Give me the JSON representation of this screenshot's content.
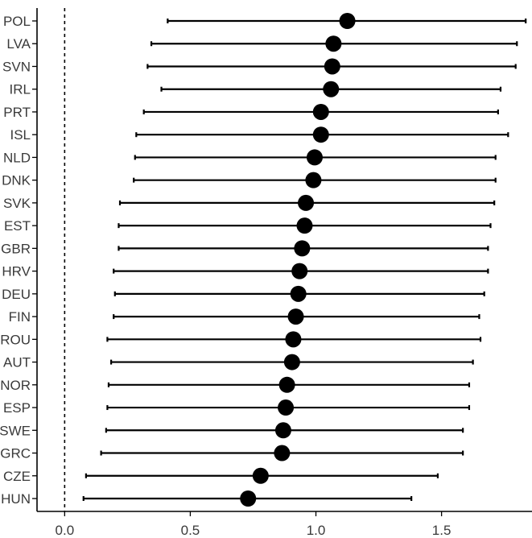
{
  "chart_data": {
    "type": "forest",
    "title": "",
    "xlabel": "",
    "ylabel": "",
    "xlim": [
      -0.11,
      1.86
    ],
    "x_ticks": [
      0.0,
      0.5,
      1.0,
      1.5
    ],
    "x_tick_labels": [
      "0.0",
      "0.5",
      "1.0",
      "1.5"
    ],
    "reference_line": 0,
    "grid": false,
    "legend": "none",
    "colors": {
      "point": "#000000",
      "line": "#000000",
      "axis": "#000000",
      "tick_text": "#3a3a3a"
    },
    "categories": [
      "POL",
      "LVA",
      "SVN",
      "IRL",
      "PRT",
      "ISL",
      "NLD",
      "DNK",
      "SVK",
      "EST",
      "GBR",
      "HRV",
      "DEU",
      "FIN",
      "ROU",
      "AUT",
      "NOR",
      "ESP",
      "SWE",
      "GRC",
      "CZE",
      "HUN"
    ],
    "estimates": [
      1.125,
      1.07,
      1.065,
      1.06,
      1.02,
      1.02,
      0.995,
      0.99,
      0.96,
      0.955,
      0.945,
      0.935,
      0.93,
      0.92,
      0.91,
      0.905,
      0.885,
      0.88,
      0.87,
      0.865,
      0.78,
      0.73
    ],
    "lower": [
      0.41,
      0.345,
      0.33,
      0.385,
      0.315,
      0.285,
      0.28,
      0.275,
      0.22,
      0.215,
      0.215,
      0.195,
      0.2,
      0.195,
      0.17,
      0.185,
      0.175,
      0.17,
      0.165,
      0.145,
      0.085,
      0.075
    ],
    "upper": [
      1.835,
      1.8,
      1.795,
      1.735,
      1.725,
      1.765,
      1.715,
      1.715,
      1.71,
      1.695,
      1.685,
      1.685,
      1.67,
      1.65,
      1.655,
      1.625,
      1.61,
      1.61,
      1.585,
      1.585,
      1.485,
      1.38
    ]
  }
}
